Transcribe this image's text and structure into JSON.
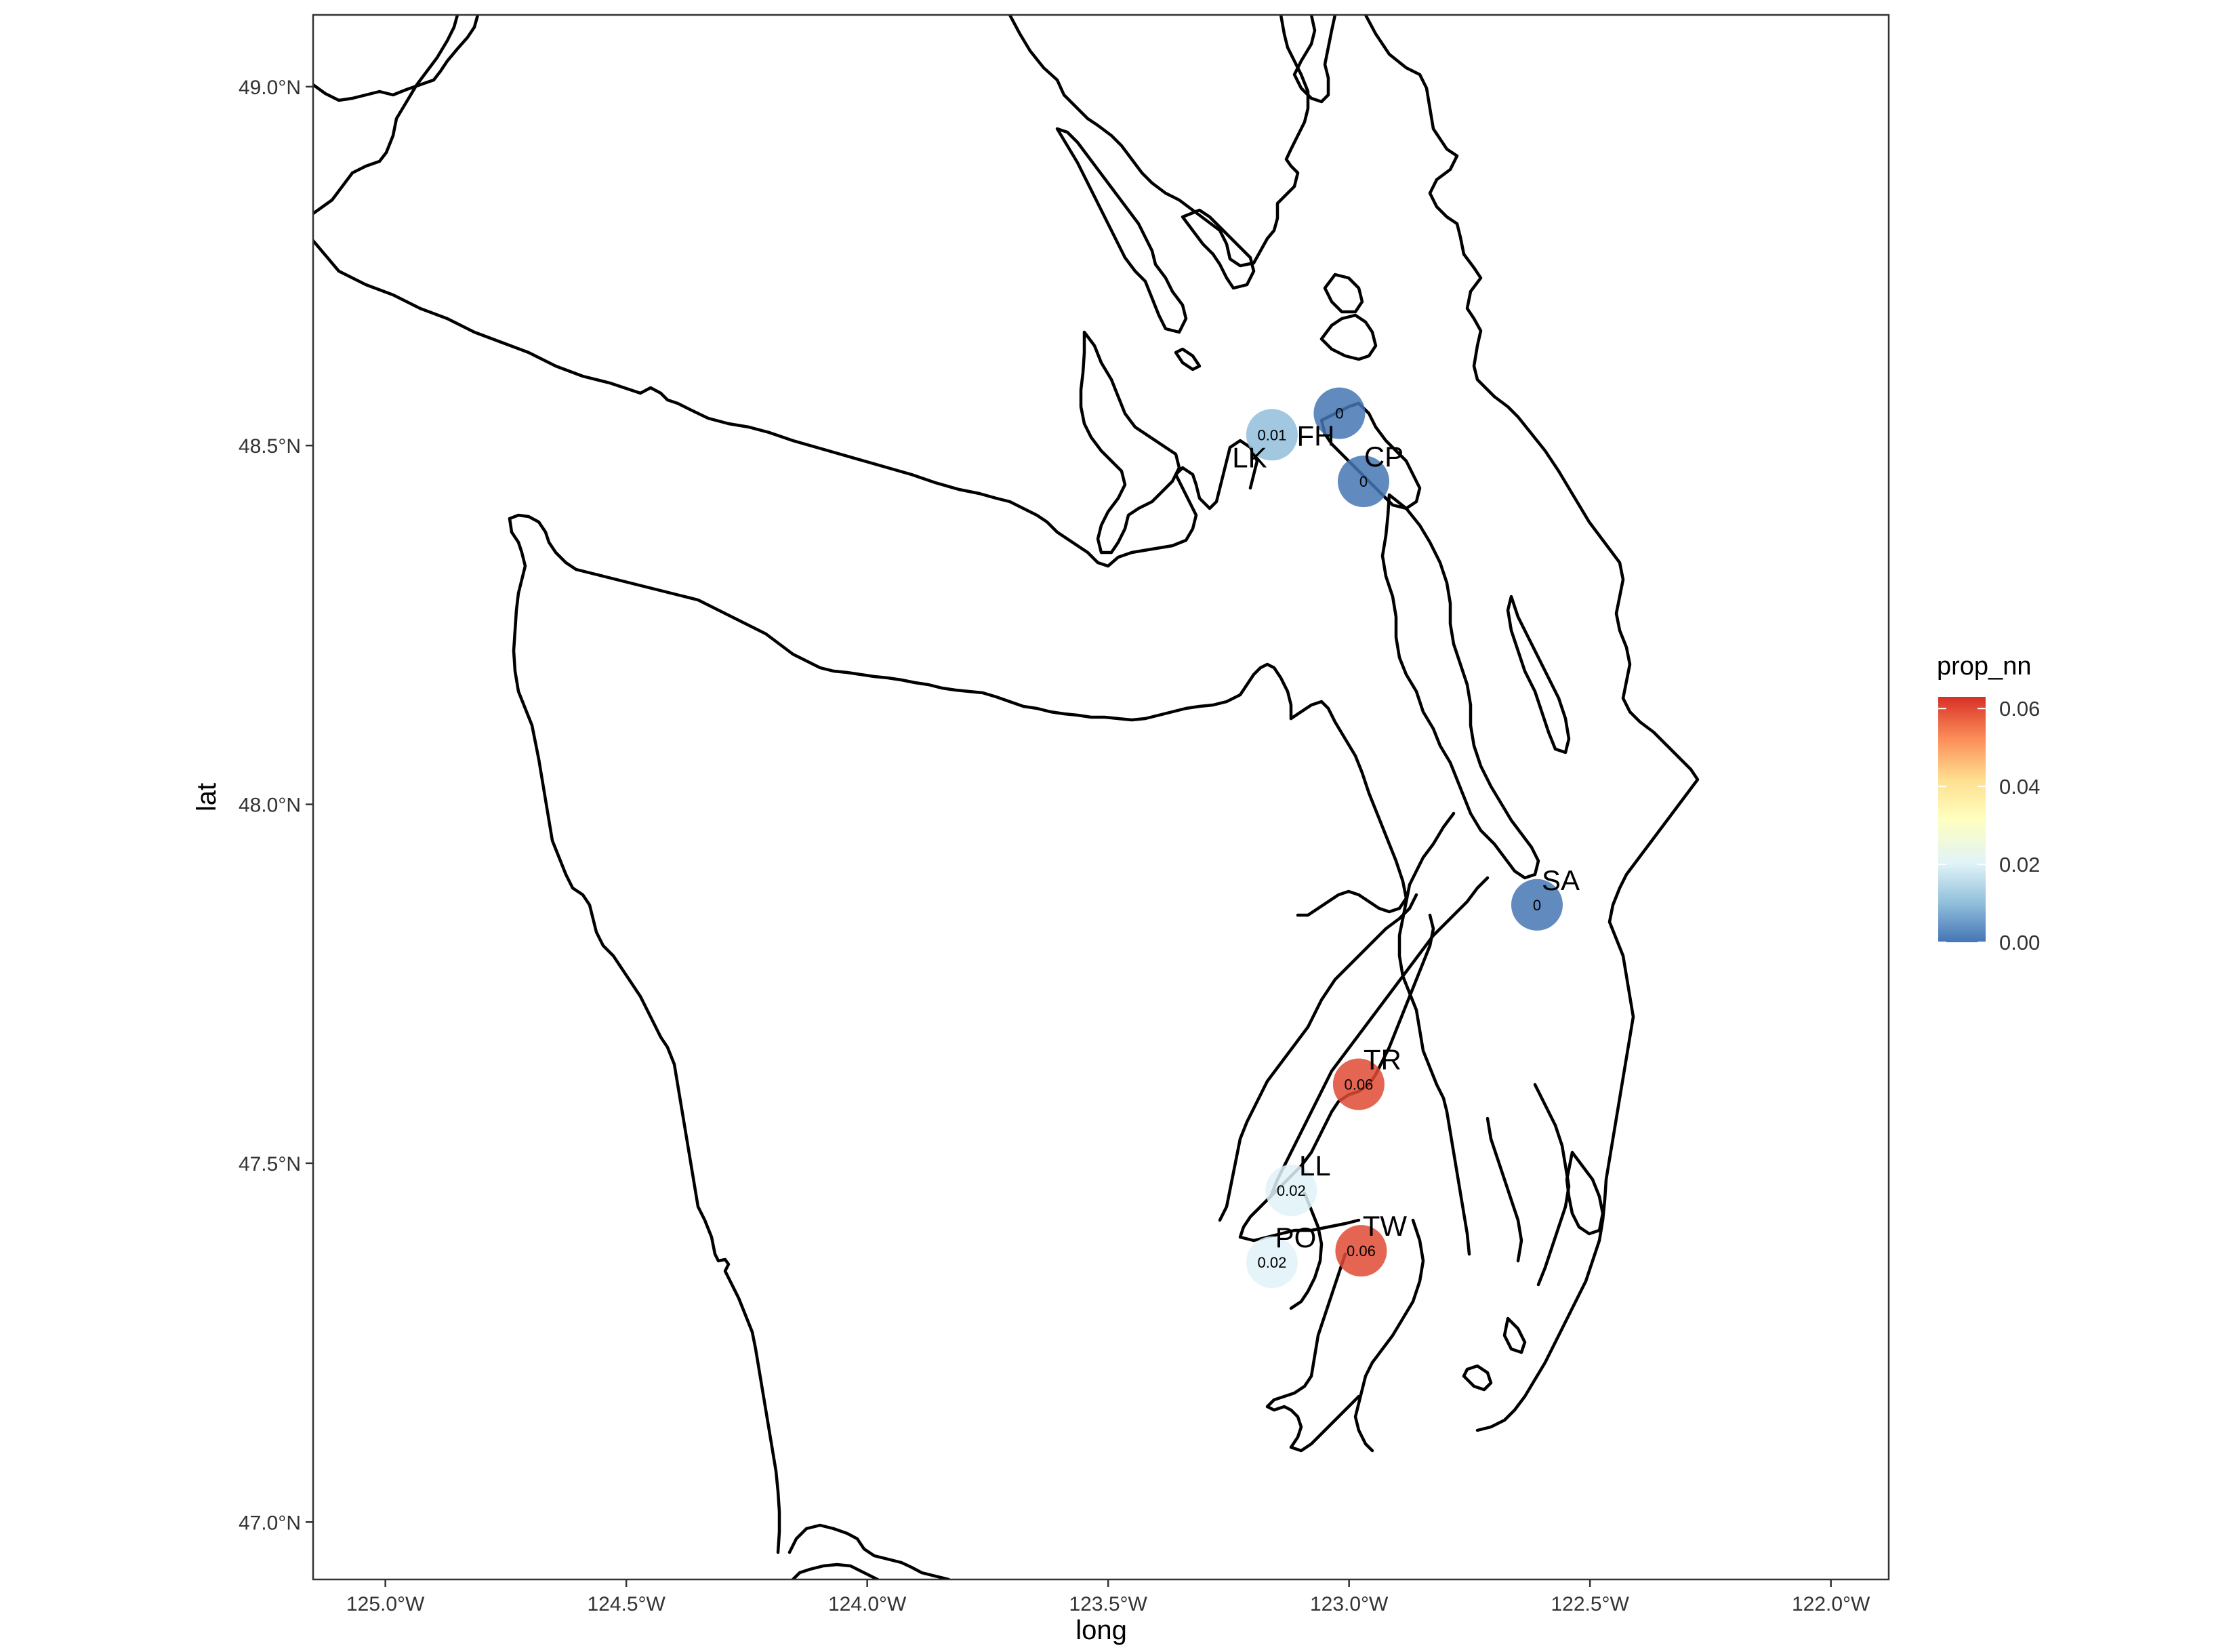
{
  "chart_data": {
    "type": "map",
    "xlabel": "long",
    "ylabel": "lat",
    "xlim": [
      -125.15,
      -121.88
    ],
    "ylim": [
      46.92,
      49.1
    ],
    "x_ticks": [
      {
        "value": -125.0,
        "label": "125.0°W"
      },
      {
        "value": -124.5,
        "label": "124.5°W"
      },
      {
        "value": -124.0,
        "label": "124.0°W"
      },
      {
        "value": -123.5,
        "label": "123.5°W"
      },
      {
        "value": -123.0,
        "label": "123.0°W"
      },
      {
        "value": -122.5,
        "label": "122.5°W"
      },
      {
        "value": -122.0,
        "label": "122.0°W"
      }
    ],
    "y_ticks": [
      {
        "value": 47.0,
        "label": "47.0°N"
      },
      {
        "value": 47.5,
        "label": "47.5°N"
      },
      {
        "value": 48.0,
        "label": "48.0°N"
      },
      {
        "value": 48.5,
        "label": "48.5°N"
      },
      {
        "value": 49.0,
        "label": "49.0°N"
      }
    ],
    "points": [
      {
        "site": "LK",
        "long": -123.16,
        "lat": 48.515,
        "prop_nn": 0.01,
        "value_label": "0.01"
      },
      {
        "site": "FH",
        "long": -123.02,
        "lat": 48.545,
        "prop_nn": 0.0,
        "value_label": "0"
      },
      {
        "site": "CP",
        "long": -122.97,
        "lat": 48.45,
        "prop_nn": 0.0,
        "value_label": "0"
      },
      {
        "site": "SA",
        "long": -122.61,
        "lat": 47.86,
        "prop_nn": 0.0,
        "value_label": "0"
      },
      {
        "site": "TR",
        "long": -122.98,
        "lat": 47.61,
        "prop_nn": 0.06,
        "value_label": "0.06"
      },
      {
        "site": "LL",
        "long": -123.12,
        "lat": 47.462,
        "prop_nn": 0.02,
        "value_label": "0.02"
      },
      {
        "site": "PO",
        "long": -123.16,
        "lat": 47.362,
        "prop_nn": 0.02,
        "value_label": "0.02"
      },
      {
        "site": "TW",
        "long": -122.975,
        "lat": 47.378,
        "prop_nn": 0.06,
        "value_label": "0.06"
      }
    ],
    "legend": {
      "title": "prop_nn",
      "placement": "right",
      "range": [
        0.0,
        0.063
      ],
      "ticks": [
        {
          "value": 0.0,
          "label": "0.00"
        },
        {
          "value": 0.02,
          "label": "0.02"
        },
        {
          "value": 0.04,
          "label": "0.04"
        },
        {
          "value": 0.06,
          "label": "0.06"
        }
      ],
      "colors": [
        "#4575b4",
        "#91bfdb",
        "#e0f3f8",
        "#ffffbf",
        "#fee090",
        "#fc8d59",
        "#d73027"
      ]
    },
    "grid": false
  }
}
